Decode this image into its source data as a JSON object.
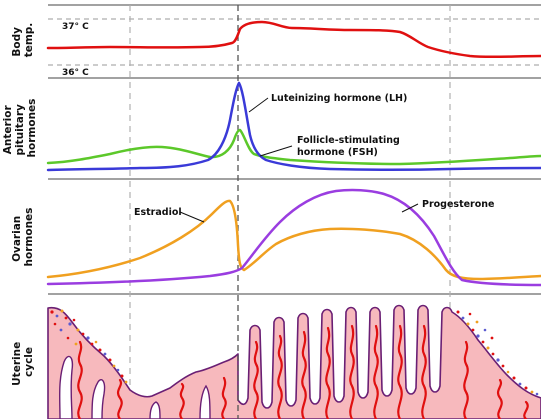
{
  "rows": {
    "body_temp": [
      "Body",
      "temp."
    ],
    "anterior": [
      "Anterior",
      "pituitary",
      "hormones"
    ],
    "ovarian": [
      "Ovarian",
      "hormones"
    ],
    "uterine": [
      "Uterine",
      "cycle"
    ]
  },
  "temp_ticks": {
    "high": "37° C",
    "low": "36° C"
  },
  "labels": {
    "lh": "Luteinizing hormone (LH)",
    "fsh": [
      "Follicle-stimulating",
      "hormone (FSH)"
    ],
    "estradiol": "Estradiol",
    "progesterone": "Progesterone"
  },
  "colors": {
    "temperature": "#e01010",
    "lh": "#3a3ad8",
    "fsh": "#5cc82a",
    "estradiol": "#f0a020",
    "progesterone": "#9a3de0",
    "endometrium": "#f7b9bd",
    "endometrium_edge": "#6a1f74",
    "arteries": "#e01010"
  }
}
